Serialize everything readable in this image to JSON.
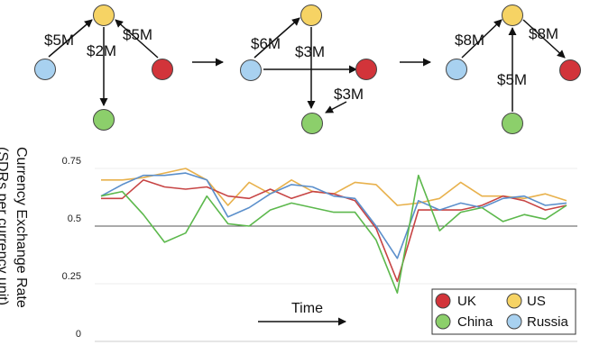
{
  "colors": {
    "UK": "#d2343a",
    "US": "#f6d364",
    "China": "#8ccf6b",
    "Russia": "#a8d1f0",
    "UK_line": "#c74444",
    "US_line": "#e8b14c",
    "China_line": "#5cb84c",
    "Russia_line": "#5b8fcb"
  },
  "diagrams": [
    {
      "edges": [
        {
          "from": "Russia",
          "to": "US",
          "label": "$5M"
        },
        {
          "from": "US",
          "to": "China",
          "label": "$2M"
        },
        {
          "from": "UK",
          "to": "US",
          "label": "$5M"
        }
      ]
    },
    {
      "edges": [
        {
          "from": "Russia",
          "to": "US",
          "label": "$6M"
        },
        {
          "from": "US",
          "to": "China",
          "label": "$3M"
        },
        {
          "from": "Russia",
          "to": "UK",
          "label": ""
        },
        {
          "from": "UK",
          "to": "China",
          "label": "$3M"
        }
      ]
    },
    {
      "edges": [
        {
          "from": "Russia",
          "to": "US",
          "label": "$8M"
        },
        {
          "from": "China",
          "to": "US",
          "label": "$5M"
        },
        {
          "from": "US",
          "to": "UK",
          "label": "$8M"
        }
      ]
    }
  ],
  "chart_data": {
    "type": "line",
    "ylabel": "Currency Exchange Rate\n(SDRs per currency unit)",
    "xlabel": "Time",
    "ylim": [
      0,
      0.75
    ],
    "yticks": [
      "0.75",
      "0.5",
      "0.25",
      "0"
    ],
    "grid": "horizontal",
    "legend_position": "bottom-right",
    "series": [
      {
        "name": "UK",
        "values": [
          0.62,
          0.62,
          0.7,
          0.67,
          0.66,
          0.67,
          0.63,
          0.62,
          0.66,
          0.62,
          0.65,
          0.64,
          0.61,
          0.49,
          0.26,
          0.57,
          0.57,
          0.57,
          0.59,
          0.63,
          0.61,
          0.57,
          0.59
        ]
      },
      {
        "name": "US",
        "values": [
          0.7,
          0.7,
          0.71,
          0.73,
          0.75,
          0.7,
          0.59,
          0.69,
          0.64,
          0.7,
          0.65,
          0.64,
          0.69,
          0.68,
          0.59,
          0.6,
          0.62,
          0.69,
          0.63,
          0.63,
          0.62,
          0.64,
          0.61
        ]
      },
      {
        "name": "China",
        "values": [
          0.63,
          0.65,
          0.55,
          0.43,
          0.47,
          0.63,
          0.51,
          0.5,
          0.57,
          0.6,
          0.58,
          0.56,
          0.56,
          0.44,
          0.21,
          0.72,
          0.48,
          0.56,
          0.58,
          0.52,
          0.55,
          0.53,
          0.59
        ]
      },
      {
        "name": "Russia",
        "values": [
          0.63,
          0.68,
          0.72,
          0.72,
          0.73,
          0.7,
          0.54,
          0.58,
          0.64,
          0.68,
          0.67,
          0.63,
          0.62,
          0.5,
          0.36,
          0.61,
          0.57,
          0.6,
          0.58,
          0.62,
          0.63,
          0.59,
          0.6
        ]
      }
    ]
  }
}
